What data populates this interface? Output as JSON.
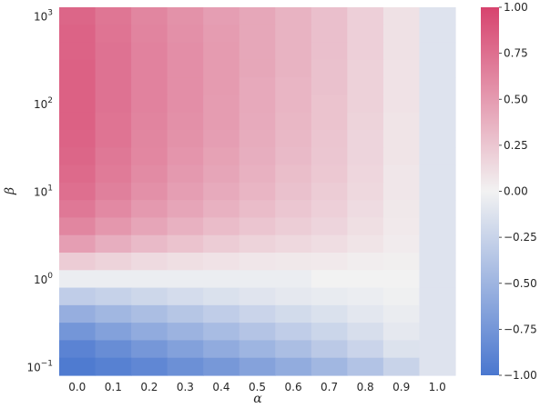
{
  "chart_data": {
    "type": "heatmap",
    "title": "",
    "xlabel": "α",
    "ylabel": "β",
    "x_categories": [
      "0.0",
      "0.1",
      "0.2",
      "0.3",
      "0.4",
      "0.5",
      "0.6",
      "0.7",
      "0.8",
      "0.9",
      "1.0"
    ],
    "y_scale": "log",
    "y_range": [
      0.1,
      1000
    ],
    "y_ticks": [
      {
        "value": 0.1,
        "base": "10",
        "exp": "−1"
      },
      {
        "value": 1,
        "base": "10",
        "exp": "0"
      },
      {
        "value": 10,
        "base": "10",
        "exp": "1"
      },
      {
        "value": 100,
        "base": "10",
        "exp": "2"
      },
      {
        "value": 1000,
        "base": "10",
        "exp": "3"
      }
    ],
    "y_rows_beta_descending": [
      "1000",
      "631",
      "398",
      "251",
      "158",
      "100",
      "63.1",
      "39.8",
      "25.1",
      "15.8",
      "10",
      "6.31",
      "3.98",
      "2.51",
      "1.58",
      "1",
      "0.631",
      "0.398",
      "0.251",
      "0.158",
      "0.1"
    ],
    "values": [
      [
        0.8,
        0.71,
        0.62,
        0.55,
        0.48,
        0.43,
        0.36,
        0.29,
        0.2,
        0.1,
        -0.12
      ],
      [
        0.82,
        0.72,
        0.63,
        0.56,
        0.49,
        0.43,
        0.36,
        0.29,
        0.2,
        0.1,
        -0.12
      ],
      [
        0.82,
        0.73,
        0.64,
        0.57,
        0.5,
        0.43,
        0.36,
        0.29,
        0.2,
        0.1,
        -0.12
      ],
      [
        0.83,
        0.73,
        0.64,
        0.57,
        0.5,
        0.43,
        0.36,
        0.28,
        0.19,
        0.09,
        -0.12
      ],
      [
        0.83,
        0.73,
        0.64,
        0.57,
        0.5,
        0.42,
        0.35,
        0.28,
        0.19,
        0.09,
        -0.12
      ],
      [
        0.83,
        0.73,
        0.64,
        0.57,
        0.49,
        0.42,
        0.35,
        0.27,
        0.19,
        0.09,
        -0.12
      ],
      [
        0.83,
        0.72,
        0.63,
        0.56,
        0.49,
        0.41,
        0.34,
        0.27,
        0.18,
        0.08,
        -0.12
      ],
      [
        0.82,
        0.72,
        0.62,
        0.55,
        0.48,
        0.4,
        0.33,
        0.26,
        0.17,
        0.08,
        -0.12
      ],
      [
        0.8,
        0.7,
        0.61,
        0.53,
        0.46,
        0.39,
        0.32,
        0.25,
        0.17,
        0.08,
        -0.12
      ],
      [
        0.78,
        0.68,
        0.59,
        0.51,
        0.44,
        0.37,
        0.3,
        0.24,
        0.16,
        0.07,
        -0.12
      ],
      [
        0.75,
        0.65,
        0.56,
        0.48,
        0.41,
        0.35,
        0.28,
        0.22,
        0.15,
        0.07,
        -0.12
      ],
      [
        0.7,
        0.6,
        0.51,
        0.44,
        0.37,
        0.31,
        0.25,
        0.2,
        0.13,
        0.06,
        -0.12
      ],
      [
        0.62,
        0.52,
        0.44,
        0.37,
        0.31,
        0.26,
        0.21,
        0.17,
        0.11,
        0.05,
        -0.12
      ],
      [
        0.48,
        0.39,
        0.32,
        0.27,
        0.22,
        0.18,
        0.15,
        0.12,
        0.08,
        0.04,
        -0.12
      ],
      [
        0.22,
        0.18,
        0.14,
        0.11,
        0.09,
        0.07,
        0.06,
        0.05,
        0.03,
        0.02,
        -0.12
      ],
      [
        -0.04,
        -0.04,
        -0.04,
        -0.04,
        -0.04,
        -0.04,
        -0.04,
        0.0,
        0.0,
        0.0,
        -0.12
      ],
      [
        -0.3,
        -0.26,
        -0.22,
        -0.18,
        -0.14,
        -0.11,
        -0.08,
        -0.06,
        -0.04,
        -0.02,
        -0.12
      ],
      [
        -0.55,
        -0.48,
        -0.42,
        -0.36,
        -0.3,
        -0.24,
        -0.19,
        -0.14,
        -0.09,
        -0.05,
        -0.12
      ],
      [
        -0.75,
        -0.66,
        -0.58,
        -0.51,
        -0.44,
        -0.37,
        -0.3,
        -0.23,
        -0.16,
        -0.08,
        -0.12
      ],
      [
        -0.9,
        -0.82,
        -0.74,
        -0.66,
        -0.58,
        -0.5,
        -0.42,
        -0.33,
        -0.24,
        -0.13,
        -0.12
      ],
      [
        -0.97,
        -0.92,
        -0.87,
        -0.8,
        -0.73,
        -0.65,
        -0.57,
        -0.48,
        -0.38,
        -0.25,
        -0.12
      ]
    ],
    "colorbar": {
      "min": -1.0,
      "max": 1.0,
      "ticks": [
        "1.00",
        "0.75",
        "0.50",
        "0.25",
        "0.00",
        "−0.25",
        "−0.50",
        "−0.75",
        "−1.00"
      ],
      "colors": {
        "negative": "#4a77cf",
        "zero": "#f2f2f2",
        "positive": "#d7436e"
      }
    },
    "grid": false,
    "legend": "colorbar-right"
  }
}
